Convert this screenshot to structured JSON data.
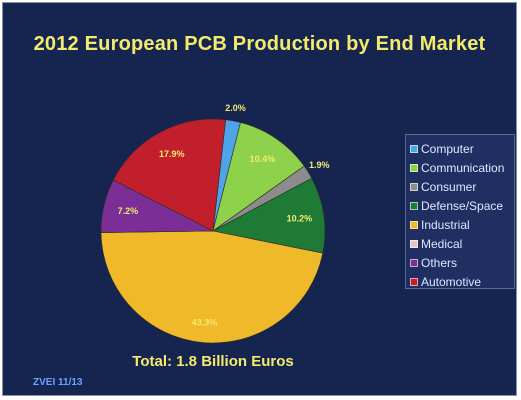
{
  "chart_data": {
    "type": "pie",
    "title": "2012 European PCB Production by End Market",
    "subtitle": "Total: 1.8 Billion Euros",
    "source": "ZVEI 11/13",
    "legend_position": "right",
    "slices": [
      {
        "label": "Computer",
        "value": 2.0,
        "display": "2.0%",
        "color": "#4fa3e8"
      },
      {
        "label": "Communication",
        "value": 10.4,
        "display": "10.4%",
        "color": "#8ed14a"
      },
      {
        "label": "Consumer",
        "value": 1.9,
        "display": "1.9%",
        "color": "#8c8c8c"
      },
      {
        "label": "Defense/Space",
        "value": 10.2,
        "display": "10.2%",
        "color": "#1f7a35"
      },
      {
        "label": "Industrial",
        "value": 43.3,
        "display": "43.3%",
        "color": "#f0b929"
      },
      {
        "label": "Medical",
        "value": 0.0,
        "display": "",
        "color": "#e3c6c6"
      },
      {
        "label": "Others",
        "value": 7.2,
        "display": "7.2%",
        "color": "#7a2e96"
      },
      {
        "label": "Automotive",
        "value": 17.9,
        "display": "17.9%",
        "color": "#c21f2c"
      }
    ]
  }
}
